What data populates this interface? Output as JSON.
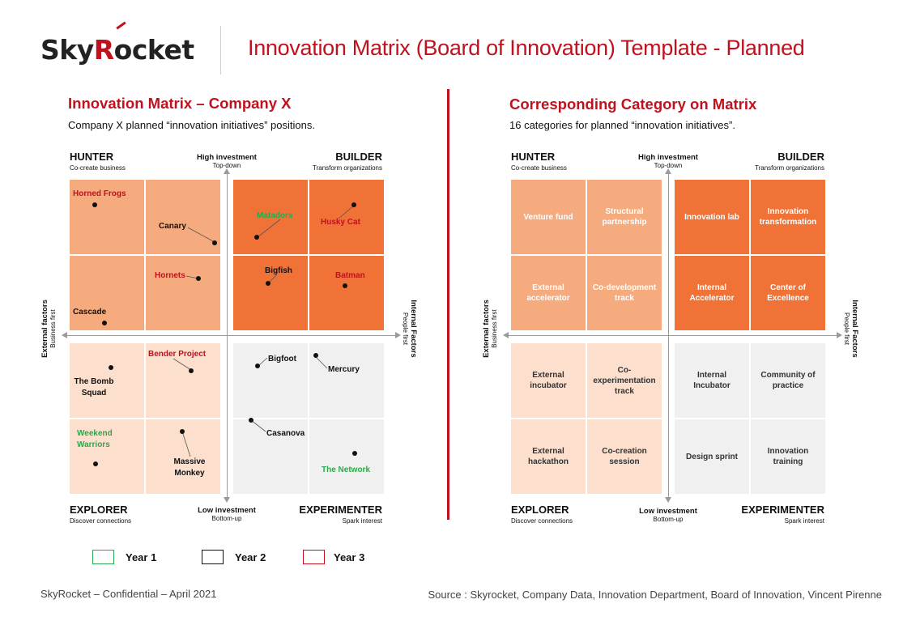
{
  "header": {
    "logo_text_a": "Sky",
    "logo_text_r": "R",
    "logo_text_b": "ocket",
    "title": "Innovation Matrix (Board of Innovation) Template - Planned"
  },
  "left": {
    "title": "Innovation Matrix – Company X",
    "subtitle": "Company X planned “innovation initiatives” positions."
  },
  "right": {
    "title": "Corresponding Category on Matrix",
    "subtitle": "16 categories for planned “innovation initiatives”."
  },
  "matrix": {
    "hunter": "HUNTER",
    "hunter_sub": "Co-create business",
    "builder": "BUILDER",
    "builder_sub": "Transform organizations",
    "explorer": "EXPLORER",
    "explorer_sub": "Discover connections",
    "experimenter": "EXPERIMENTER",
    "experimenter_sub": "Spark interest",
    "top_axis": "High investment",
    "top_axis_sub": "Top-down",
    "bottom_axis": "Low investment",
    "bottom_axis_sub": "Bottom-up",
    "left_axis": "External factors",
    "left_axis_sub": "Business first",
    "right_axis": "Internal Factors",
    "right_axis_sub": "People first"
  },
  "initiatives": [
    {
      "name": "Horned Frogs",
      "year": "Year 3"
    },
    {
      "name": "Canary",
      "year": "Year 2"
    },
    {
      "name": "Matadors",
      "year": "Year 1"
    },
    {
      "name": "Husky Cat",
      "year": "Year 3"
    },
    {
      "name": "Hornets",
      "year": "Year 3"
    },
    {
      "name": "Cascade",
      "year": "Year 2"
    },
    {
      "name": "Bigfish",
      "year": "Year 2"
    },
    {
      "name": "Batman",
      "year": "Year 3"
    },
    {
      "name": "The Bomb Squad",
      "year": "Year 2"
    },
    {
      "name": "Bender Project",
      "year": "Year 3"
    },
    {
      "name": "Bigfoot",
      "year": "Year 2"
    },
    {
      "name": "Mercury",
      "year": "Year 2"
    },
    {
      "name": "Weekend Warriors",
      "year": "Year 1"
    },
    {
      "name": "Massive Monkey",
      "year": "Year 2"
    },
    {
      "name": "Casanova",
      "year": "Year 2"
    },
    {
      "name": "The Network",
      "year": "Year 1"
    }
  ],
  "categories": [
    "Venture fund",
    "Structural partnership",
    "Innovation lab",
    "Innovation transformation",
    "External accelerator",
    "Co-development track",
    "Internal Accelerator",
    "Center of Excellence",
    "External incubator",
    "Co-experimentation track",
    "Internal Incubator",
    "Community of practice",
    "External hackathon",
    "Co-creation session",
    "Design sprint",
    "Innovation training"
  ],
  "legend": [
    {
      "label": "Year 1",
      "color": "#2da84a"
    },
    {
      "label": "Year 2",
      "color": "#111111"
    },
    {
      "label": "Year 3",
      "color": "#c0111f"
    }
  ],
  "colors": {
    "year1": "#2da84a",
    "year2": "#111111",
    "year3": "#c0111f",
    "builder": "#f07236",
    "hunter": "#f5ab7d",
    "explorer": "#fcdfcd",
    "experimenter": "#f0f0f0"
  },
  "footer": {
    "left": "SkyRocket – Confidential – April 2021",
    "right": "Source : Skyrocket, Company Data, Innovation Department, Board of Innovation, Vincent Pirenne"
  }
}
